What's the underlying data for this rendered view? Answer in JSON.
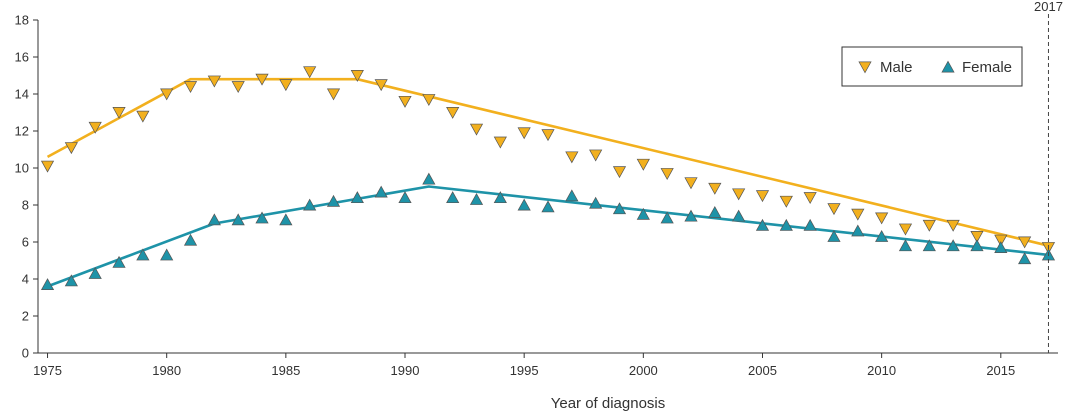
{
  "chart_data": {
    "type": "scatter",
    "xlabel": "Year of diagnosis",
    "ylabel": "",
    "xlim": [
      1974.6,
      2017.4
    ],
    "ylim": [
      0,
      18
    ],
    "x_ticks": [
      1975,
      1980,
      1985,
      1990,
      1995,
      2000,
      2005,
      2010,
      2015
    ],
    "y_ticks": [
      0,
      2,
      4,
      6,
      8,
      10,
      12,
      14,
      16,
      18
    ],
    "grid": false,
    "legend_position": "top-right",
    "reference_line": {
      "x": 2017,
      "label": "2017",
      "style": "dashed"
    },
    "series": [
      {
        "name": "Male",
        "color": "#f2b01e",
        "marker": "triangle-down",
        "x": [
          1975,
          1976,
          1977,
          1978,
          1979,
          1980,
          1981,
          1982,
          1983,
          1984,
          1985,
          1986,
          1987,
          1988,
          1989,
          1990,
          1991,
          1992,
          1993,
          1994,
          1995,
          1996,
          1997,
          1998,
          1999,
          2000,
          2001,
          2002,
          2003,
          2004,
          2005,
          2006,
          2007,
          2008,
          2009,
          2010,
          2011,
          2012,
          2013,
          2014,
          2015,
          2016,
          2017
        ],
        "values": [
          10.1,
          11.1,
          12.2,
          13.0,
          12.8,
          14.0,
          14.4,
          14.7,
          14.4,
          14.8,
          14.5,
          15.2,
          14.0,
          15.0,
          14.5,
          13.6,
          13.7,
          13.0,
          12.1,
          11.4,
          11.9,
          11.8,
          10.6,
          10.7,
          9.8,
          10.2,
          9.7,
          9.2,
          8.9,
          8.6,
          8.5,
          8.2,
          8.4,
          7.8,
          7.5,
          7.3,
          6.7,
          6.9,
          6.9,
          6.3,
          6.1,
          6.0,
          5.7
        ],
        "trend": {
          "x": [
            1975,
            1981,
            1988,
            2017
          ],
          "values": [
            10.6,
            14.8,
            14.8,
            5.8
          ]
        }
      },
      {
        "name": "Female",
        "color": "#1e93a8",
        "marker": "triangle-up",
        "x": [
          1975,
          1976,
          1977,
          1978,
          1979,
          1980,
          1981,
          1982,
          1983,
          1984,
          1985,
          1986,
          1987,
          1988,
          1989,
          1990,
          1991,
          1992,
          1993,
          1994,
          1995,
          1996,
          1997,
          1998,
          1999,
          2000,
          2001,
          2002,
          2003,
          2004,
          2005,
          2006,
          2007,
          2008,
          2009,
          2010,
          2011,
          2012,
          2013,
          2014,
          2015,
          2016,
          2017
        ],
        "values": [
          3.7,
          3.9,
          4.3,
          4.9,
          5.3,
          5.3,
          6.1,
          7.2,
          7.2,
          7.3,
          7.2,
          8.0,
          8.2,
          8.4,
          8.7,
          8.4,
          9.4,
          8.4,
          8.3,
          8.4,
          8.0,
          7.9,
          8.5,
          8.1,
          7.8,
          7.5,
          7.3,
          7.4,
          7.6,
          7.4,
          6.9,
          6.9,
          6.9,
          6.3,
          6.6,
          6.3,
          5.8,
          5.8,
          5.8,
          5.8,
          5.7,
          5.1,
          5.3
        ],
        "trend": {
          "x": [
            1975,
            1982,
            1991,
            2017
          ],
          "values": [
            3.6,
            7.0,
            9.0,
            5.3
          ]
        }
      }
    ]
  }
}
